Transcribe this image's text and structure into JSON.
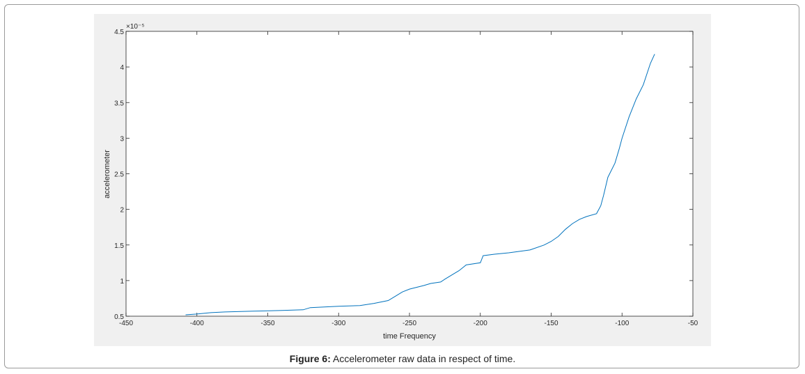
{
  "figure": {
    "caption_label": "Figure 6:",
    "caption_text": " Accelerometer raw data in respect of time."
  },
  "chart_data": {
    "type": "line",
    "title": "",
    "xlabel": "time Frequency",
    "ylabel": "accelerometer",
    "y_exponent_label": "x 10^-5",
    "xlim": [
      -450,
      -50
    ],
    "ylim": [
      0.5,
      4.5
    ],
    "x_ticks": [
      -450,
      -400,
      -350,
      -300,
      -250,
      -200,
      -150,
      -100,
      -50
    ],
    "y_ticks": [
      0.5,
      1,
      1.5,
      2,
      2.5,
      3,
      3.5,
      4,
      4.5
    ],
    "grid": false,
    "series": [
      {
        "color": "#0072bd",
        "x": [
          -408,
          -400,
          -390,
          -380,
          -360,
          -340,
          -325,
          -320,
          -300,
          -285,
          -275,
          -265,
          -260,
          -255,
          -250,
          -240,
          -235,
          -228,
          -225,
          -220,
          -215,
          -210,
          -200,
          -198,
          -190,
          -180,
          -165,
          -155,
          -150,
          -145,
          -140,
          -135,
          -130,
          -125,
          -118,
          -115,
          -113,
          -110,
          -105,
          -102,
          -100,
          -95,
          -90,
          -85,
          -80,
          -77
        ],
        "y": [
          0.52,
          0.53,
          0.55,
          0.56,
          0.57,
          0.58,
          0.59,
          0.62,
          0.64,
          0.65,
          0.68,
          0.72,
          0.78,
          0.84,
          0.88,
          0.93,
          0.96,
          0.98,
          1.02,
          1.08,
          1.14,
          1.22,
          1.25,
          1.35,
          1.37,
          1.39,
          1.43,
          1.5,
          1.55,
          1.62,
          1.72,
          1.8,
          1.86,
          1.9,
          1.94,
          2.05,
          2.2,
          2.45,
          2.65,
          2.85,
          3.0,
          3.3,
          3.55,
          3.75,
          4.05,
          4.18
        ]
      }
    ]
  }
}
